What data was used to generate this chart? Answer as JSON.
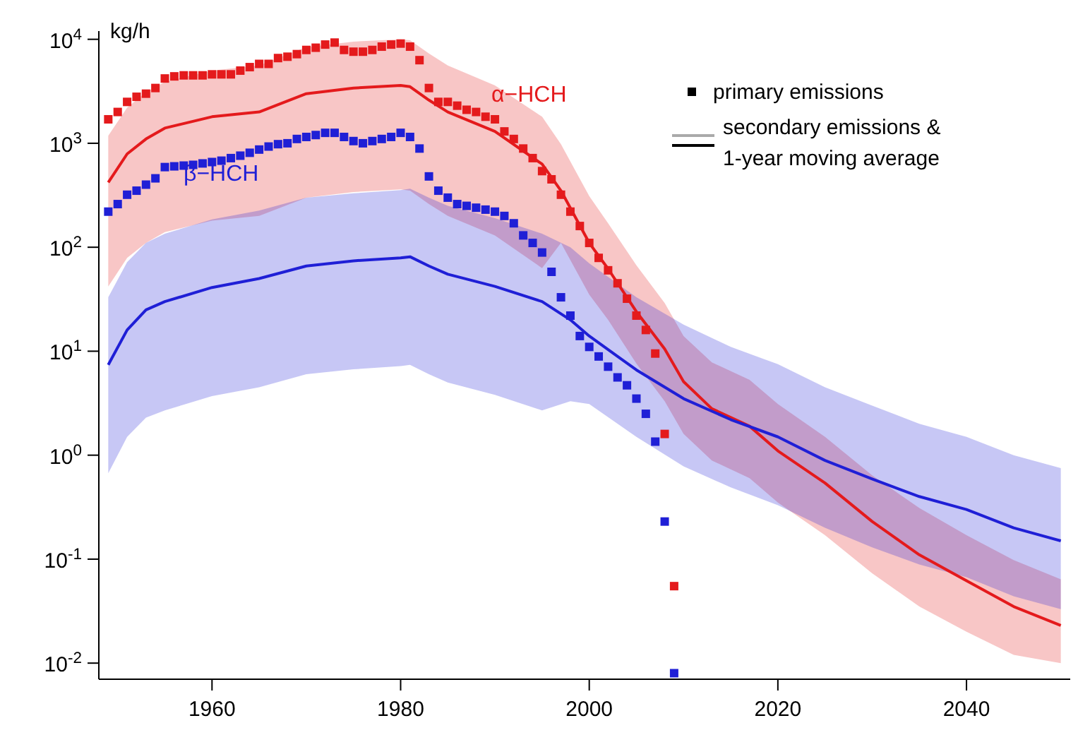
{
  "chart_data": {
    "type": "line",
    "ylabel": "kg/h",
    "log": "y",
    "xlim": [
      1948,
      2051
    ],
    "xticks": [
      1960,
      1980,
      2000,
      2020,
      2040
    ],
    "ylim": [
      0.007,
      12000
    ],
    "yticks": [
      {
        "value": 0.01,
        "label": "10$^{-2}$"
      },
      {
        "value": 0.1,
        "label": "10$^{-1}$"
      },
      {
        "value": 1,
        "label": "10$^{0}$"
      },
      {
        "value": 10,
        "label": "10$^{1}$"
      },
      {
        "value": 100,
        "label": "10$^{2}$"
      },
      {
        "value": 1000,
        "label": "10$^{3}$"
      },
      {
        "value": 10000,
        "label": "10$^{4}$"
      }
    ],
    "series": [
      {
        "name": "α−HCH",
        "color": "#e41a1c",
        "x": [
          1949,
          1951,
          1953,
          1955,
          1960,
          1965,
          1970,
          1975,
          1980,
          1981,
          1983,
          1985,
          1990,
          1995,
          1997,
          2000,
          2002,
          2005,
          2008,
          2010,
          2013,
          2017,
          2020,
          2025,
          2030,
          2035,
          2040,
          2045,
          2050
        ],
        "values": [
          420,
          790,
          1100,
          1400,
          1800,
          2000,
          3000,
          3400,
          3600,
          3500,
          2600,
          2000,
          1300,
          630,
          350,
          110,
          62,
          24,
          10.5,
          5.1,
          2.8,
          1.9,
          1.1,
          0.54,
          0.23,
          0.11,
          0.062,
          0.035,
          0.023
        ],
        "upper": [
          1180,
          2200,
          3100,
          3900,
          5000,
          5600,
          8400,
          9500,
          10000,
          9800,
          7300,
          5600,
          3600,
          1800,
          980,
          310,
          170,
          67,
          29,
          14,
          7.8,
          5.3,
          3.1,
          1.5,
          0.64,
          0.31,
          0.17,
          0.098,
          0.064
        ],
        "lower": [
          42,
          79,
          110,
          140,
          180,
          200,
          300,
          340,
          360,
          350,
          260,
          200,
          130,
          63,
          110,
          35,
          20,
          7.6,
          3.3,
          1.6,
          0.89,
          0.6,
          0.35,
          0.17,
          0.073,
          0.035,
          0.02,
          0.012,
          0.01
        ]
      },
      {
        "name": "β−HCH",
        "color": "#1f1fd6",
        "x": [
          1949,
          1951,
          1953,
          1955,
          1960,
          1965,
          1970,
          1975,
          1980,
          1981,
          1983,
          1985,
          1990,
          1995,
          1998,
          2000,
          2005,
          2010,
          2015,
          2020,
          2025,
          2030,
          2035,
          2040,
          2045,
          2050
        ],
        "values": [
          7.4,
          16,
          25,
          30,
          41,
          50,
          66,
          74,
          79,
          81,
          66,
          55,
          42,
          30,
          20,
          14,
          6.6,
          3.5,
          2.2,
          1.5,
          0.89,
          0.59,
          0.4,
          0.3,
          0.2,
          0.15
        ],
        "upper": [
          33,
          72,
          110,
          135,
          185,
          225,
          300,
          330,
          355,
          365,
          300,
          250,
          190,
          135,
          100,
          70,
          33,
          18,
          11,
          7.5,
          4.5,
          3.0,
          2.0,
          1.5,
          1.0,
          0.75
        ],
        "lower": [
          0.67,
          1.5,
          2.3,
          2.7,
          3.7,
          4.5,
          6,
          6.7,
          7.2,
          7.4,
          6,
          5,
          3.8,
          2.7,
          3.3,
          3.1,
          1.5,
          0.78,
          0.49,
          0.33,
          0.2,
          0.13,
          0.089,
          0.067,
          0.044,
          0.033
        ]
      },
      {
        "type": "scatter",
        "marker": "square",
        "color": "#e41a1c",
        "x": [
          1949,
          1950,
          1951,
          1952,
          1953,
          1954,
          1955,
          1956,
          1957,
          1958,
          1959,
          1960,
          1961,
          1962,
          1963,
          1964,
          1965,
          1966,
          1967,
          1968,
          1969,
          1970,
          1971,
          1972,
          1973,
          1974,
          1975,
          1976,
          1977,
          1978,
          1979,
          1980,
          1981,
          1982,
          1983,
          1984,
          1985,
          1986,
          1987,
          1988,
          1989,
          1990,
          1991,
          1992,
          1993,
          1994,
          1995,
          1996,
          1997,
          1998,
          1999,
          2000,
          2001,
          2002,
          2003,
          2004,
          2005,
          2006,
          2007,
          2008,
          2009
        ],
        "values": [
          1700,
          2000,
          2500,
          2800,
          3000,
          3400,
          4200,
          4400,
          4500,
          4500,
          4500,
          4600,
          4600,
          4600,
          5000,
          5400,
          5800,
          5800,
          6600,
          6800,
          7200,
          7900,
          8300,
          8900,
          9300,
          7900,
          7600,
          7600,
          7900,
          8500,
          8900,
          9100,
          8500,
          6300,
          3400,
          2500,
          2500,
          2300,
          2100,
          2000,
          1800,
          1700,
          1300,
          1100,
          890,
          720,
          540,
          450,
          320,
          220,
          160,
          110,
          79,
          60,
          45,
          32,
          22,
          16,
          9.5,
          1.6,
          0.055
        ]
      },
      {
        "type": "scatter",
        "marker": "square",
        "color": "#1f1fd6",
        "x": [
          1949,
          1950,
          1951,
          1952,
          1953,
          1954,
          1955,
          1956,
          1957,
          1958,
          1959,
          1960,
          1961,
          1962,
          1963,
          1964,
          1965,
          1966,
          1967,
          1968,
          1969,
          1970,
          1971,
          1972,
          1973,
          1974,
          1975,
          1976,
          1977,
          1978,
          1979,
          1980,
          1981,
          1982,
          1983,
          1984,
          1985,
          1986,
          1987,
          1988,
          1989,
          1990,
          1991,
          1992,
          1993,
          1994,
          1995,
          1996,
          1997,
          1998,
          1999,
          2000,
          2001,
          2002,
          2003,
          2004,
          2005,
          2006,
          2007,
          2008,
          2009
        ],
        "values": [
          220,
          260,
          320,
          350,
          400,
          460,
          590,
          600,
          610,
          620,
          640,
          660,
          680,
          720,
          760,
          810,
          870,
          930,
          980,
          1000,
          1100,
          1150,
          1200,
          1260,
          1260,
          1150,
          1050,
          1000,
          1050,
          1100,
          1150,
          1260,
          1150,
          890,
          480,
          350,
          300,
          260,
          250,
          240,
          230,
          220,
          200,
          170,
          130,
          110,
          89,
          58,
          33,
          22,
          14,
          11,
          8.9,
          7.1,
          5.6,
          4.7,
          3.5,
          2.5,
          1.35,
          0.23,
          0.008
        ]
      }
    ],
    "annotations": [
      "primary emissions",
      "secondary emissions &",
      "1-year moving average"
    ]
  }
}
